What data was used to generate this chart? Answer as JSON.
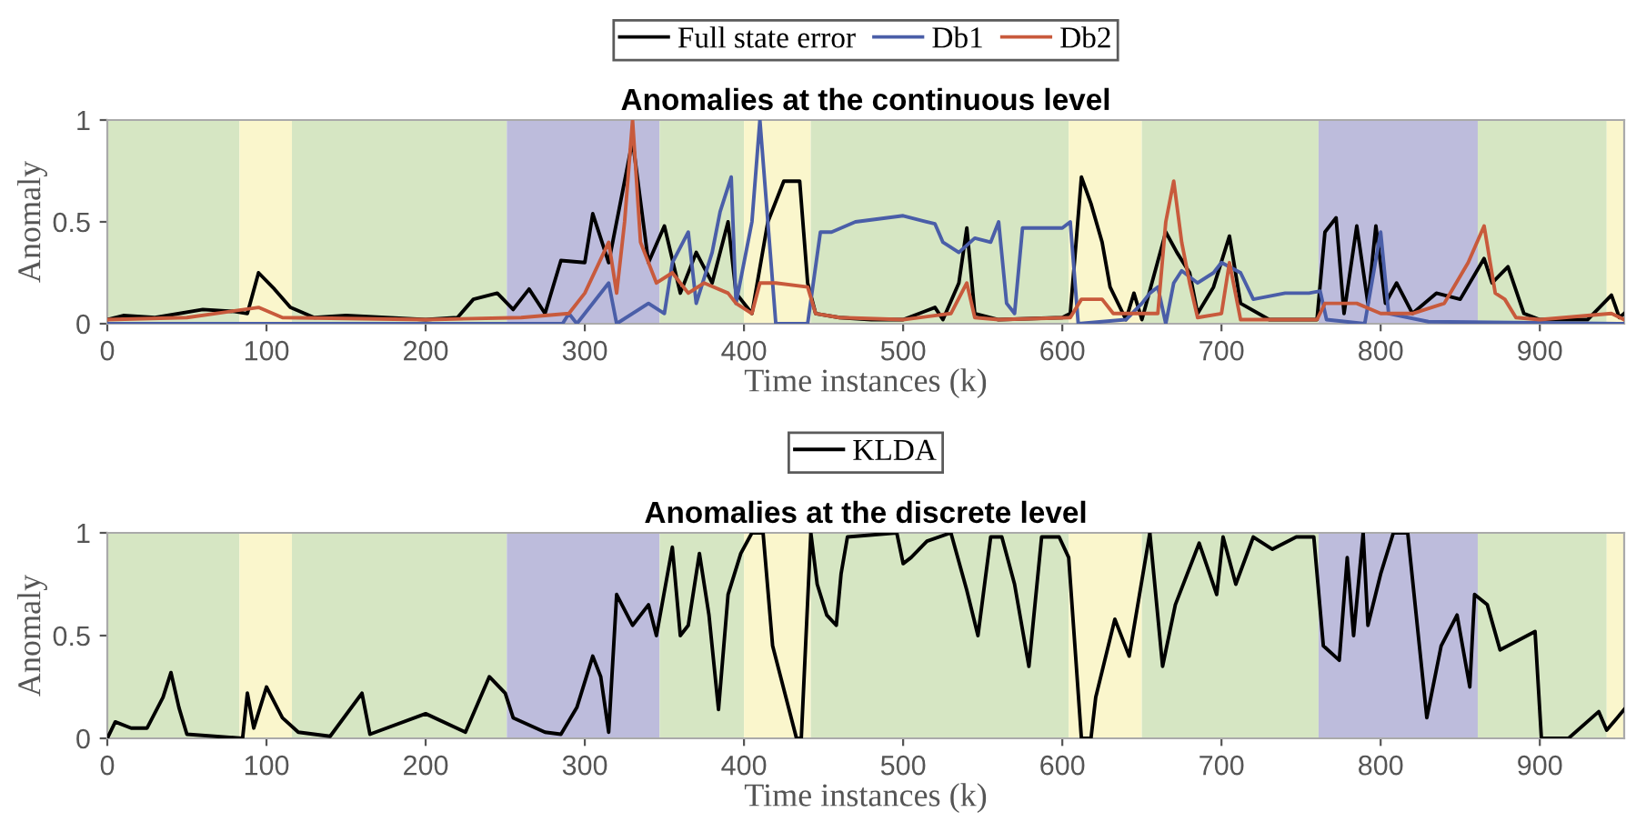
{
  "chart_data": [
    {
      "type": "line",
      "title": "Anomalies at the continuous level",
      "xlabel": "Time instances (k)",
      "ylabel": "Anomaly",
      "xlim": [
        0,
        953
      ],
      "ylim": [
        0,
        1
      ],
      "xticks": [
        0,
        100,
        200,
        300,
        400,
        500,
        600,
        700,
        800,
        900
      ],
      "yticks": [
        0,
        {
          "value": 0.5,
          "label": "0.5"
        },
        1
      ],
      "grid": false,
      "legend": "top",
      "marker": "none",
      "line_style": "solid",
      "bands": [
        {
          "axis": "x",
          "from": 0,
          "to": 83,
          "color": "#d6e6c3"
        },
        {
          "axis": "x",
          "from": 83,
          "to": 116,
          "color": "#faf6cc"
        },
        {
          "axis": "x",
          "from": 116,
          "to": 251,
          "color": "#d6e6c3"
        },
        {
          "axis": "x",
          "from": 251,
          "to": 347,
          "color": "#bdbcdc"
        },
        {
          "axis": "x",
          "from": 347,
          "to": 400,
          "color": "#d6e6c3"
        },
        {
          "axis": "x",
          "from": 400,
          "to": 442,
          "color": "#faf6cc"
        },
        {
          "axis": "x",
          "from": 442,
          "to": 604,
          "color": "#d6e6c3"
        },
        {
          "axis": "x",
          "from": 604,
          "to": 650,
          "color": "#faf6cc"
        },
        {
          "axis": "x",
          "from": 650,
          "to": 761,
          "color": "#d6e6c3"
        },
        {
          "axis": "x",
          "from": 761,
          "to": 861,
          "color": "#bdbcdc"
        },
        {
          "axis": "x",
          "from": 861,
          "to": 942,
          "color": "#d6e6c3"
        },
        {
          "axis": "x",
          "from": 942,
          "to": 953,
          "color": "#faf6cc"
        }
      ],
      "series": [
        {
          "name": "Full state error",
          "color": "#000000",
          "x": [
            0,
            10,
            30,
            60,
            80,
            88,
            95,
            105,
            115,
            130,
            150,
            200,
            220,
            230,
            245,
            255,
            265,
            275,
            285,
            300,
            305,
            315,
            330,
            340,
            350,
            360,
            370,
            380,
            390,
            395,
            405,
            415,
            425,
            435,
            440,
            445,
            460,
            480,
            500,
            520,
            525,
            535,
            540,
            545,
            560,
            600,
            605,
            612,
            618,
            625,
            630,
            640,
            645,
            650,
            665,
            672,
            680,
            685,
            695,
            705,
            712,
            730,
            760,
            765,
            772,
            777,
            785,
            792,
            797,
            803,
            810,
            820,
            835,
            850,
            865,
            870,
            880,
            890,
            900,
            930,
            945,
            950,
            953
          ],
          "values": [
            0.02,
            0.04,
            0.03,
            0.07,
            0.06,
            0.05,
            0.25,
            0.17,
            0.08,
            0.03,
            0.04,
            0.02,
            0.03,
            0.12,
            0.15,
            0.07,
            0.17,
            0.05,
            0.31,
            0.3,
            0.54,
            0.3,
            0.9,
            0.3,
            0.48,
            0.15,
            0.35,
            0.2,
            0.5,
            0.15,
            0.05,
            0.5,
            0.7,
            0.7,
            0.2,
            0.05,
            0.03,
            0.02,
            0.02,
            0.08,
            0.02,
            0.2,
            0.47,
            0.05,
            0.02,
            0.03,
            0.05,
            0.72,
            0.59,
            0.4,
            0.18,
            0.02,
            0.15,
            0.02,
            0.45,
            0.35,
            0.25,
            0.05,
            0.18,
            0.43,
            0.1,
            0.02,
            0.02,
            0.45,
            0.52,
            0.05,
            0.48,
            0.1,
            0.48,
            0.1,
            0.2,
            0.05,
            0.15,
            0.12,
            0.32,
            0.2,
            0.28,
            0.05,
            0.02,
            0.02,
            0.14,
            0.03,
            0.05
          ]
        },
        {
          "name": "Db1",
          "color": "#4a5ea8",
          "x": [
            0,
            286,
            290,
            295,
            315,
            320,
            340,
            350,
            355,
            365,
            370,
            380,
            385,
            392,
            395,
            405,
            410,
            415,
            420,
            440,
            448,
            455,
            470,
            500,
            520,
            525,
            535,
            545,
            555,
            560,
            565,
            570,
            575,
            600,
            605,
            610,
            640,
            650,
            655,
            660,
            665,
            670,
            675,
            685,
            695,
            700,
            712,
            720,
            740,
            755,
            762,
            766,
            790,
            800,
            805,
            830,
            953
          ],
          "values": [
            0,
            0,
            0.05,
            0,
            0.2,
            0,
            0.1,
            0.05,
            0.3,
            0.45,
            0.1,
            0.35,
            0.55,
            0.72,
            0.1,
            0.5,
            1,
            0.5,
            0,
            0,
            0.45,
            0.45,
            0.5,
            0.53,
            0.49,
            0.4,
            0.35,
            0.42,
            0.4,
            0.5,
            0.1,
            0.05,
            0.47,
            0.47,
            0.5,
            0,
            0.02,
            0.1,
            0.15,
            0.18,
            0,
            0.2,
            0.26,
            0.2,
            0.25,
            0.3,
            0.25,
            0.12,
            0.15,
            0.15,
            0.16,
            0.02,
            0,
            0.45,
            0.05,
            0.01,
            0
          ]
        },
        {
          "name": "Db2",
          "color": "#c85a3c",
          "x": [
            0,
            50,
            95,
            110,
            200,
            260,
            290,
            300,
            315,
            320,
            325,
            330,
            335,
            345,
            355,
            365,
            375,
            390,
            395,
            405,
            410,
            420,
            440,
            445,
            460,
            500,
            530,
            540,
            545,
            560,
            605,
            612,
            625,
            632,
            660,
            665,
            670,
            675,
            680,
            685,
            700,
            705,
            712,
            760,
            765,
            785,
            800,
            820,
            840,
            855,
            865,
            872,
            878,
            885,
            900,
            945,
            953
          ],
          "values": [
            0.02,
            0.03,
            0.08,
            0.03,
            0.02,
            0.03,
            0.05,
            0.15,
            0.4,
            0.15,
            0.5,
            1,
            0.4,
            0.2,
            0.25,
            0.15,
            0.2,
            0.15,
            0.1,
            0.05,
            0.2,
            0.2,
            0.18,
            0.05,
            0.03,
            0.02,
            0.05,
            0.2,
            0.03,
            0.02,
            0.03,
            0.12,
            0.12,
            0.05,
            0.05,
            0.5,
            0.7,
            0.4,
            0.2,
            0.03,
            0.05,
            0.3,
            0.02,
            0.02,
            0.1,
            0.1,
            0.05,
            0.05,
            0.1,
            0.3,
            0.48,
            0.15,
            0.12,
            0.03,
            0.02,
            0.05,
            0.02
          ]
        }
      ]
    },
    {
      "type": "line",
      "title": "Anomalies at the discrete level",
      "xlabel": "Time instances (k)",
      "ylabel": "Anomaly",
      "xlim": [
        0,
        953
      ],
      "ylim": [
        0,
        1
      ],
      "xticks": [
        0,
        100,
        200,
        300,
        400,
        500,
        600,
        700,
        800,
        900
      ],
      "yticks": [
        0,
        {
          "value": 0.5,
          "label": "0.5"
        },
        1
      ],
      "grid": false,
      "legend": "top",
      "marker": "none",
      "line_style": "solid",
      "bands": [
        {
          "axis": "x",
          "from": 0,
          "to": 83,
          "color": "#d6e6c3"
        },
        {
          "axis": "x",
          "from": 83,
          "to": 116,
          "color": "#faf6cc"
        },
        {
          "axis": "x",
          "from": 116,
          "to": 251,
          "color": "#d6e6c3"
        },
        {
          "axis": "x",
          "from": 251,
          "to": 347,
          "color": "#bdbcdc"
        },
        {
          "axis": "x",
          "from": 347,
          "to": 400,
          "color": "#d6e6c3"
        },
        {
          "axis": "x",
          "from": 400,
          "to": 442,
          "color": "#faf6cc"
        },
        {
          "axis": "x",
          "from": 442,
          "to": 604,
          "color": "#d6e6c3"
        },
        {
          "axis": "x",
          "from": 604,
          "to": 650,
          "color": "#faf6cc"
        },
        {
          "axis": "x",
          "from": 650,
          "to": 761,
          "color": "#d6e6c3"
        },
        {
          "axis": "x",
          "from": 761,
          "to": 861,
          "color": "#bdbcdc"
        },
        {
          "axis": "x",
          "from": 861,
          "to": 942,
          "color": "#d6e6c3"
        },
        {
          "axis": "x",
          "from": 942,
          "to": 953,
          "color": "#faf6cc"
        }
      ],
      "series": [
        {
          "name": "KLDA",
          "color": "#000000",
          "x": [
            0,
            5,
            15,
            25,
            35,
            40,
            45,
            50,
            85,
            88,
            92,
            100,
            110,
            120,
            140,
            160,
            165,
            200,
            225,
            240,
            250,
            255,
            275,
            285,
            295,
            305,
            310,
            315,
            320,
            330,
            340,
            345,
            355,
            360,
            365,
            372,
            378,
            384,
            390,
            398,
            405,
            412,
            418,
            433,
            436,
            442,
            446,
            452,
            458,
            461,
            465,
            496,
            500,
            505,
            515,
            530,
            540,
            547,
            555,
            562,
            570,
            579,
            587,
            598,
            604,
            612,
            618,
            621,
            633,
            642,
            655,
            663,
            671,
            686,
            697,
            701,
            709,
            720,
            732,
            747,
            758,
            764,
            774,
            779,
            783,
            789,
            792,
            800,
            808,
            817,
            829,
            838,
            848,
            856,
            859,
            867,
            875,
            897,
            901,
            918,
            937,
            942,
            953
          ],
          "values": [
            0,
            0.08,
            0.05,
            0.05,
            0.2,
            0.32,
            0.15,
            0.02,
            0,
            0.22,
            0.05,
            0.25,
            0.1,
            0.03,
            0.01,
            0.22,
            0.02,
            0.12,
            0.03,
            0.3,
            0.22,
            0.1,
            0.03,
            0.02,
            0.15,
            0.4,
            0.3,
            0.03,
            0.7,
            0.55,
            0.65,
            0.5,
            0.93,
            0.5,
            0.55,
            0.9,
            0.6,
            0.14,
            0.7,
            0.9,
            1,
            1,
            0.45,
            0,
            0.0,
            1,
            0.75,
            0.6,
            0.55,
            0.8,
            0.98,
            1,
            0.85,
            0.88,
            0.96,
            1,
            0.72,
            0.5,
            0.98,
            0.98,
            0.75,
            0.35,
            0.98,
            0.98,
            0.88,
            0,
            0,
            0.2,
            0.58,
            0.4,
            1,
            0.35,
            0.65,
            0.95,
            0.7,
            0.98,
            0.75,
            0.98,
            0.92,
            0.98,
            0.98,
            0.45,
            0.38,
            0.88,
            0.5,
            1,
            0.55,
            0.8,
            1,
            1,
            0.1,
            0.45,
            0.6,
            0.25,
            0.7,
            0.65,
            0.43,
            0.52,
            0,
            0,
            0.13,
            0.04,
            0.14
          ]
        }
      ]
    }
  ]
}
